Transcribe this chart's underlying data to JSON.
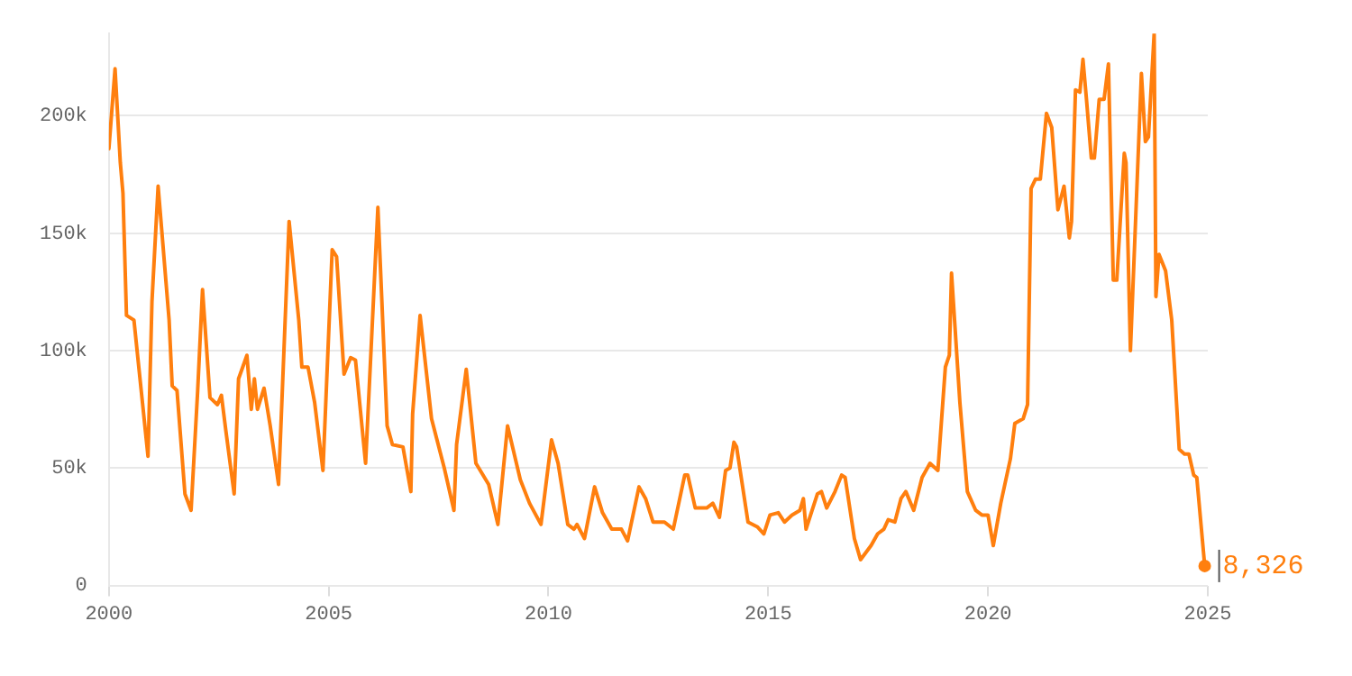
{
  "chart_data": {
    "type": "line",
    "xlim": [
      2000,
      2025
    ],
    "ylim": [
      0,
      235000
    ],
    "xticks": [
      2000,
      2005,
      2010,
      2015,
      2020,
      2025
    ],
    "yticks": [
      {
        "value": 0,
        "label": "0"
      },
      {
        "value": 50000,
        "label": "50k"
      },
      {
        "value": 100000,
        "label": "100k"
      },
      {
        "value": 150000,
        "label": "150k"
      },
      {
        "value": 200000,
        "label": "200k"
      }
    ],
    "grid": "y",
    "legend": false,
    "marker": "none",
    "line_style": "solid",
    "series": [
      {
        "color": "#ff7f0e",
        "x": [
          2000.0,
          2000.14,
          2000.26,
          2000.32,
          2000.4,
          2000.57,
          2000.89,
          2000.98,
          2001.12,
          2001.37,
          2001.44,
          2001.55,
          2001.73,
          2001.87,
          2002.02,
          2002.13,
          2002.3,
          2002.47,
          2002.56,
          2002.66,
          2002.85,
          2002.95,
          2003.14,
          2003.24,
          2003.31,
          2003.38,
          2003.53,
          2003.67,
          2003.86,
          2004.1,
          2004.32,
          2004.39,
          2004.53,
          2004.68,
          2004.87,
          2005.08,
          2005.18,
          2005.35,
          2005.5,
          2005.61,
          2005.84,
          2006.12,
          2006.33,
          2006.45,
          2006.69,
          2006.87,
          2006.91,
          2007.08,
          2007.34,
          2007.63,
          2007.85,
          2007.91,
          2008.13,
          2008.35,
          2008.64,
          2008.85,
          2009.07,
          2009.36,
          2009.57,
          2009.83,
          2010.07,
          2010.22,
          2010.44,
          2010.58,
          2010.65,
          2010.82,
          2011.05,
          2011.23,
          2011.44,
          2011.66,
          2011.8,
          2012.06,
          2012.21,
          2012.38,
          2012.64,
          2012.84,
          2013.1,
          2013.17,
          2013.34,
          2013.6,
          2013.74,
          2013.89,
          2014.03,
          2014.13,
          2014.22,
          2014.28,
          2014.54,
          2014.75,
          2014.9,
          2015.04,
          2015.23,
          2015.37,
          2015.54,
          2015.72,
          2015.8,
          2015.86,
          2015.98,
          2016.12,
          2016.21,
          2016.33,
          2016.52,
          2016.67,
          2016.75,
          2016.96,
          2017.1,
          2017.34,
          2017.49,
          2017.63,
          2017.73,
          2017.88,
          2018.02,
          2018.13,
          2018.31,
          2018.5,
          2018.68,
          2018.86,
          2019.03,
          2019.12,
          2019.17,
          2019.36,
          2019.53,
          2019.72,
          2019.86,
          2020.0,
          2020.12,
          2020.29,
          2020.51,
          2020.61,
          2020.8,
          2020.9,
          2020.98,
          2021.08,
          2021.19,
          2021.33,
          2021.45,
          2021.59,
          2021.73,
          2021.85,
          2021.9,
          2021.99,
          2022.09,
          2022.16,
          2022.24,
          2022.35,
          2022.42,
          2022.53,
          2022.64,
          2022.74,
          2022.85,
          2022.93,
          2023.1,
          2023.14,
          2023.24,
          2023.49,
          2023.58,
          2023.65,
          2023.78,
          2023.82,
          2023.89,
          2024.04,
          2024.18,
          2024.35,
          2024.47,
          2024.57,
          2024.68,
          2024.75,
          2024.93
        ],
        "values": [
          186000,
          220000,
          180000,
          167000,
          115000,
          113000,
          55000,
          121000,
          170000,
          113000,
          85000,
          83000,
          39000,
          32000,
          83000,
          126000,
          80000,
          77000,
          81000,
          66000,
          39000,
          88000,
          98000,
          75000,
          88000,
          75000,
          84000,
          68000,
          43000,
          155000,
          113000,
          93000,
          93000,
          78000,
          49000,
          143000,
          140000,
          90000,
          97000,
          96000,
          52000,
          161000,
          68000,
          60000,
          59000,
          40000,
          73000,
          115000,
          71000,
          50000,
          32000,
          60000,
          92000,
          52000,
          43000,
          26000,
          68000,
          45000,
          35000,
          26000,
          62000,
          52000,
          26000,
          24000,
          26000,
          20000,
          42000,
          31000,
          24000,
          24000,
          19000,
          42000,
          37000,
          27000,
          27000,
          24000,
          47000,
          47000,
          33000,
          33000,
          35000,
          29000,
          49000,
          50000,
          61000,
          59000,
          27000,
          25000,
          22000,
          30000,
          31000,
          27000,
          30000,
          32000,
          37000,
          24000,
          31000,
          39000,
          40000,
          33000,
          40000,
          47000,
          46000,
          20000,
          11000,
          17000,
          22000,
          24000,
          28000,
          27000,
          37000,
          40000,
          32000,
          46000,
          52000,
          49000,
          93000,
          98000,
          133000,
          78000,
          40000,
          32000,
          30000,
          30000,
          17000,
          35000,
          54000,
          69000,
          71000,
          77000,
          169000,
          173000,
          173000,
          201000,
          195000,
          160000,
          170000,
          148000,
          155000,
          211000,
          210000,
          224000,
          207000,
          182000,
          182000,
          207000,
          207000,
          222000,
          130000,
          130000,
          184000,
          180000,
          100000,
          218000,
          189000,
          191000,
          235000,
          123000,
          141000,
          134000,
          113000,
          58000,
          56000,
          56000,
          47000,
          46000,
          8326
        ]
      }
    ],
    "annotations": [
      {
        "text": "8,326",
        "x": 2024.93,
        "y": 8326
      }
    ]
  }
}
